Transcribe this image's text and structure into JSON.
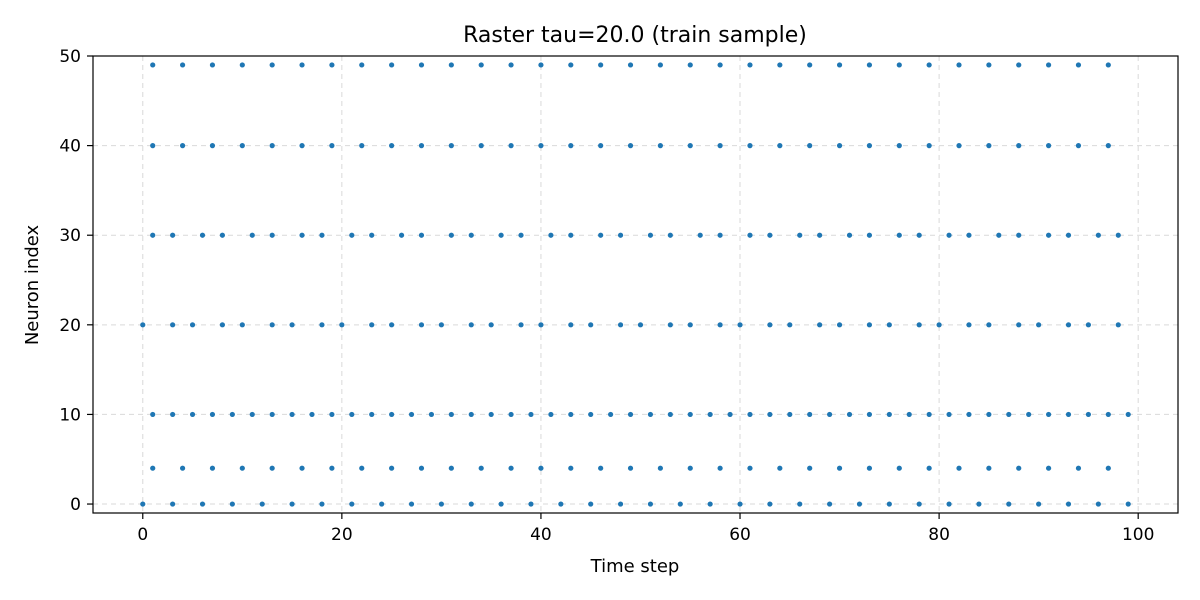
{
  "chart_data": {
    "type": "scatter",
    "title": "Raster tau=20.0 (train sample)",
    "xlabel": "Time step",
    "ylabel": "Neuron index",
    "xlim": [
      -5,
      104
    ],
    "ylim": [
      -1,
      50
    ],
    "xticks": [
      0,
      20,
      40,
      60,
      80,
      100
    ],
    "yticks": [
      0,
      10,
      20,
      30,
      40,
      50
    ],
    "grid": true,
    "marker_color": "#1f77b4",
    "series": [
      {
        "points_by_neuron": {
          "0": [
            0,
            3,
            6,
            9,
            12,
            15,
            18,
            21,
            24,
            27,
            30,
            33,
            36,
            39,
            42,
            45,
            48,
            51,
            54,
            57,
            60,
            63,
            66,
            69,
            72,
            75,
            78,
            81,
            84,
            87,
            90,
            93,
            96,
            99
          ],
          "4": [
            1,
            4,
            7,
            10,
            13,
            16,
            19,
            22,
            25,
            28,
            31,
            34,
            37,
            40,
            43,
            46,
            49,
            52,
            55,
            58,
            61,
            64,
            67,
            70,
            73,
            76,
            79,
            82,
            85,
            88,
            91,
            94,
            97
          ],
          "10": [
            1,
            3,
            5,
            7,
            9,
            11,
            13,
            15,
            17,
            19,
            21,
            23,
            25,
            27,
            29,
            31,
            33,
            35,
            37,
            39,
            41,
            43,
            45,
            47,
            49,
            51,
            53,
            55,
            57,
            59,
            61,
            63,
            65,
            67,
            69,
            71,
            73,
            75,
            77,
            79,
            81,
            83,
            85,
            87,
            89,
            91,
            93,
            95,
            97,
            99
          ],
          "20": [
            0,
            3,
            5,
            8,
            10,
            13,
            15,
            18,
            20,
            23,
            25,
            28,
            30,
            33,
            35,
            38,
            40,
            43,
            45,
            48,
            50,
            53,
            55,
            58,
            60,
            63,
            65,
            68,
            70,
            73,
            75,
            78,
            80,
            83,
            85,
            88,
            90,
            93,
            95,
            98
          ],
          "30": [
            1,
            3,
            6,
            8,
            11,
            13,
            16,
            18,
            21,
            23,
            26,
            28,
            31,
            33,
            36,
            38,
            41,
            43,
            46,
            48,
            51,
            53,
            56,
            58,
            61,
            63,
            66,
            68,
            71,
            73,
            76,
            78,
            81,
            83,
            86,
            88,
            91,
            93,
            96,
            98
          ],
          "40": [
            1,
            4,
            7,
            10,
            13,
            16,
            19,
            22,
            25,
            28,
            31,
            34,
            37,
            40,
            43,
            46,
            49,
            52,
            55,
            58,
            61,
            64,
            67,
            70,
            73,
            76,
            79,
            82,
            85,
            88,
            91,
            94,
            97
          ],
          "49": [
            1,
            4,
            7,
            10,
            13,
            16,
            19,
            22,
            25,
            28,
            31,
            34,
            37,
            40,
            43,
            46,
            49,
            52,
            55,
            58,
            61,
            64,
            67,
            70,
            73,
            76,
            79,
            82,
            85,
            88,
            91,
            94,
            97
          ]
        }
      }
    ]
  }
}
